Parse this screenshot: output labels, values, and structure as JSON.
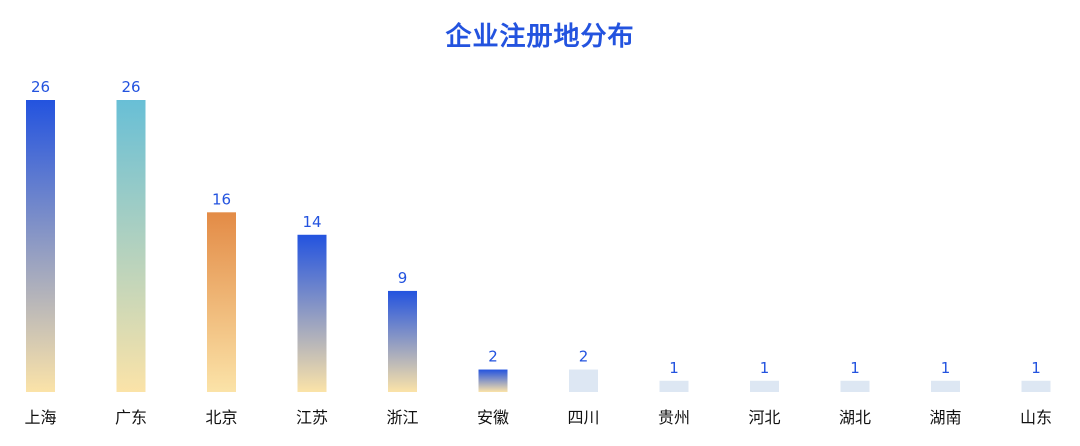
{
  "chart_data": {
    "type": "bar",
    "title": "企业注册地分布",
    "xlabel": "",
    "ylabel": "",
    "categories": [
      "上海",
      "广东",
      "北京",
      "江苏",
      "浙江",
      "安徽",
      "四川",
      "贵州",
      "河北",
      "湖北",
      "湖南",
      "山东"
    ],
    "values": [
      26,
      26,
      16,
      14,
      9,
      2,
      2,
      1,
      1,
      1,
      1,
      1
    ],
    "ylim": [
      0,
      26
    ],
    "grid": false,
    "legend": "none",
    "bar_styles": [
      {
        "top": "#2353df",
        "bottom": "#fbe3a8"
      },
      {
        "top": "#68bfd6",
        "bottom": "#fbe3a8"
      },
      {
        "top": "#e38b46",
        "bottom": "#fbe3a8"
      },
      {
        "top": "#2353df",
        "bottom": "#fbe3a8"
      },
      {
        "top": "#2353df",
        "bottom": "#fbe3a8"
      },
      {
        "top": "#2353df",
        "bottom": "#fbe3a8"
      },
      {
        "top": "#dde7f3",
        "bottom": "#dde7f3"
      },
      {
        "top": "#dde7f3",
        "bottom": "#dde7f3"
      },
      {
        "top": "#dde7f3",
        "bottom": "#dde7f3"
      },
      {
        "top": "#dde7f3",
        "bottom": "#dde7f3"
      },
      {
        "top": "#dde7f3",
        "bottom": "#dde7f3"
      },
      {
        "top": "#dde7f3",
        "bottom": "#dde7f3"
      }
    ],
    "value_label_color": "#2353df",
    "category_label_color": "#111111"
  }
}
